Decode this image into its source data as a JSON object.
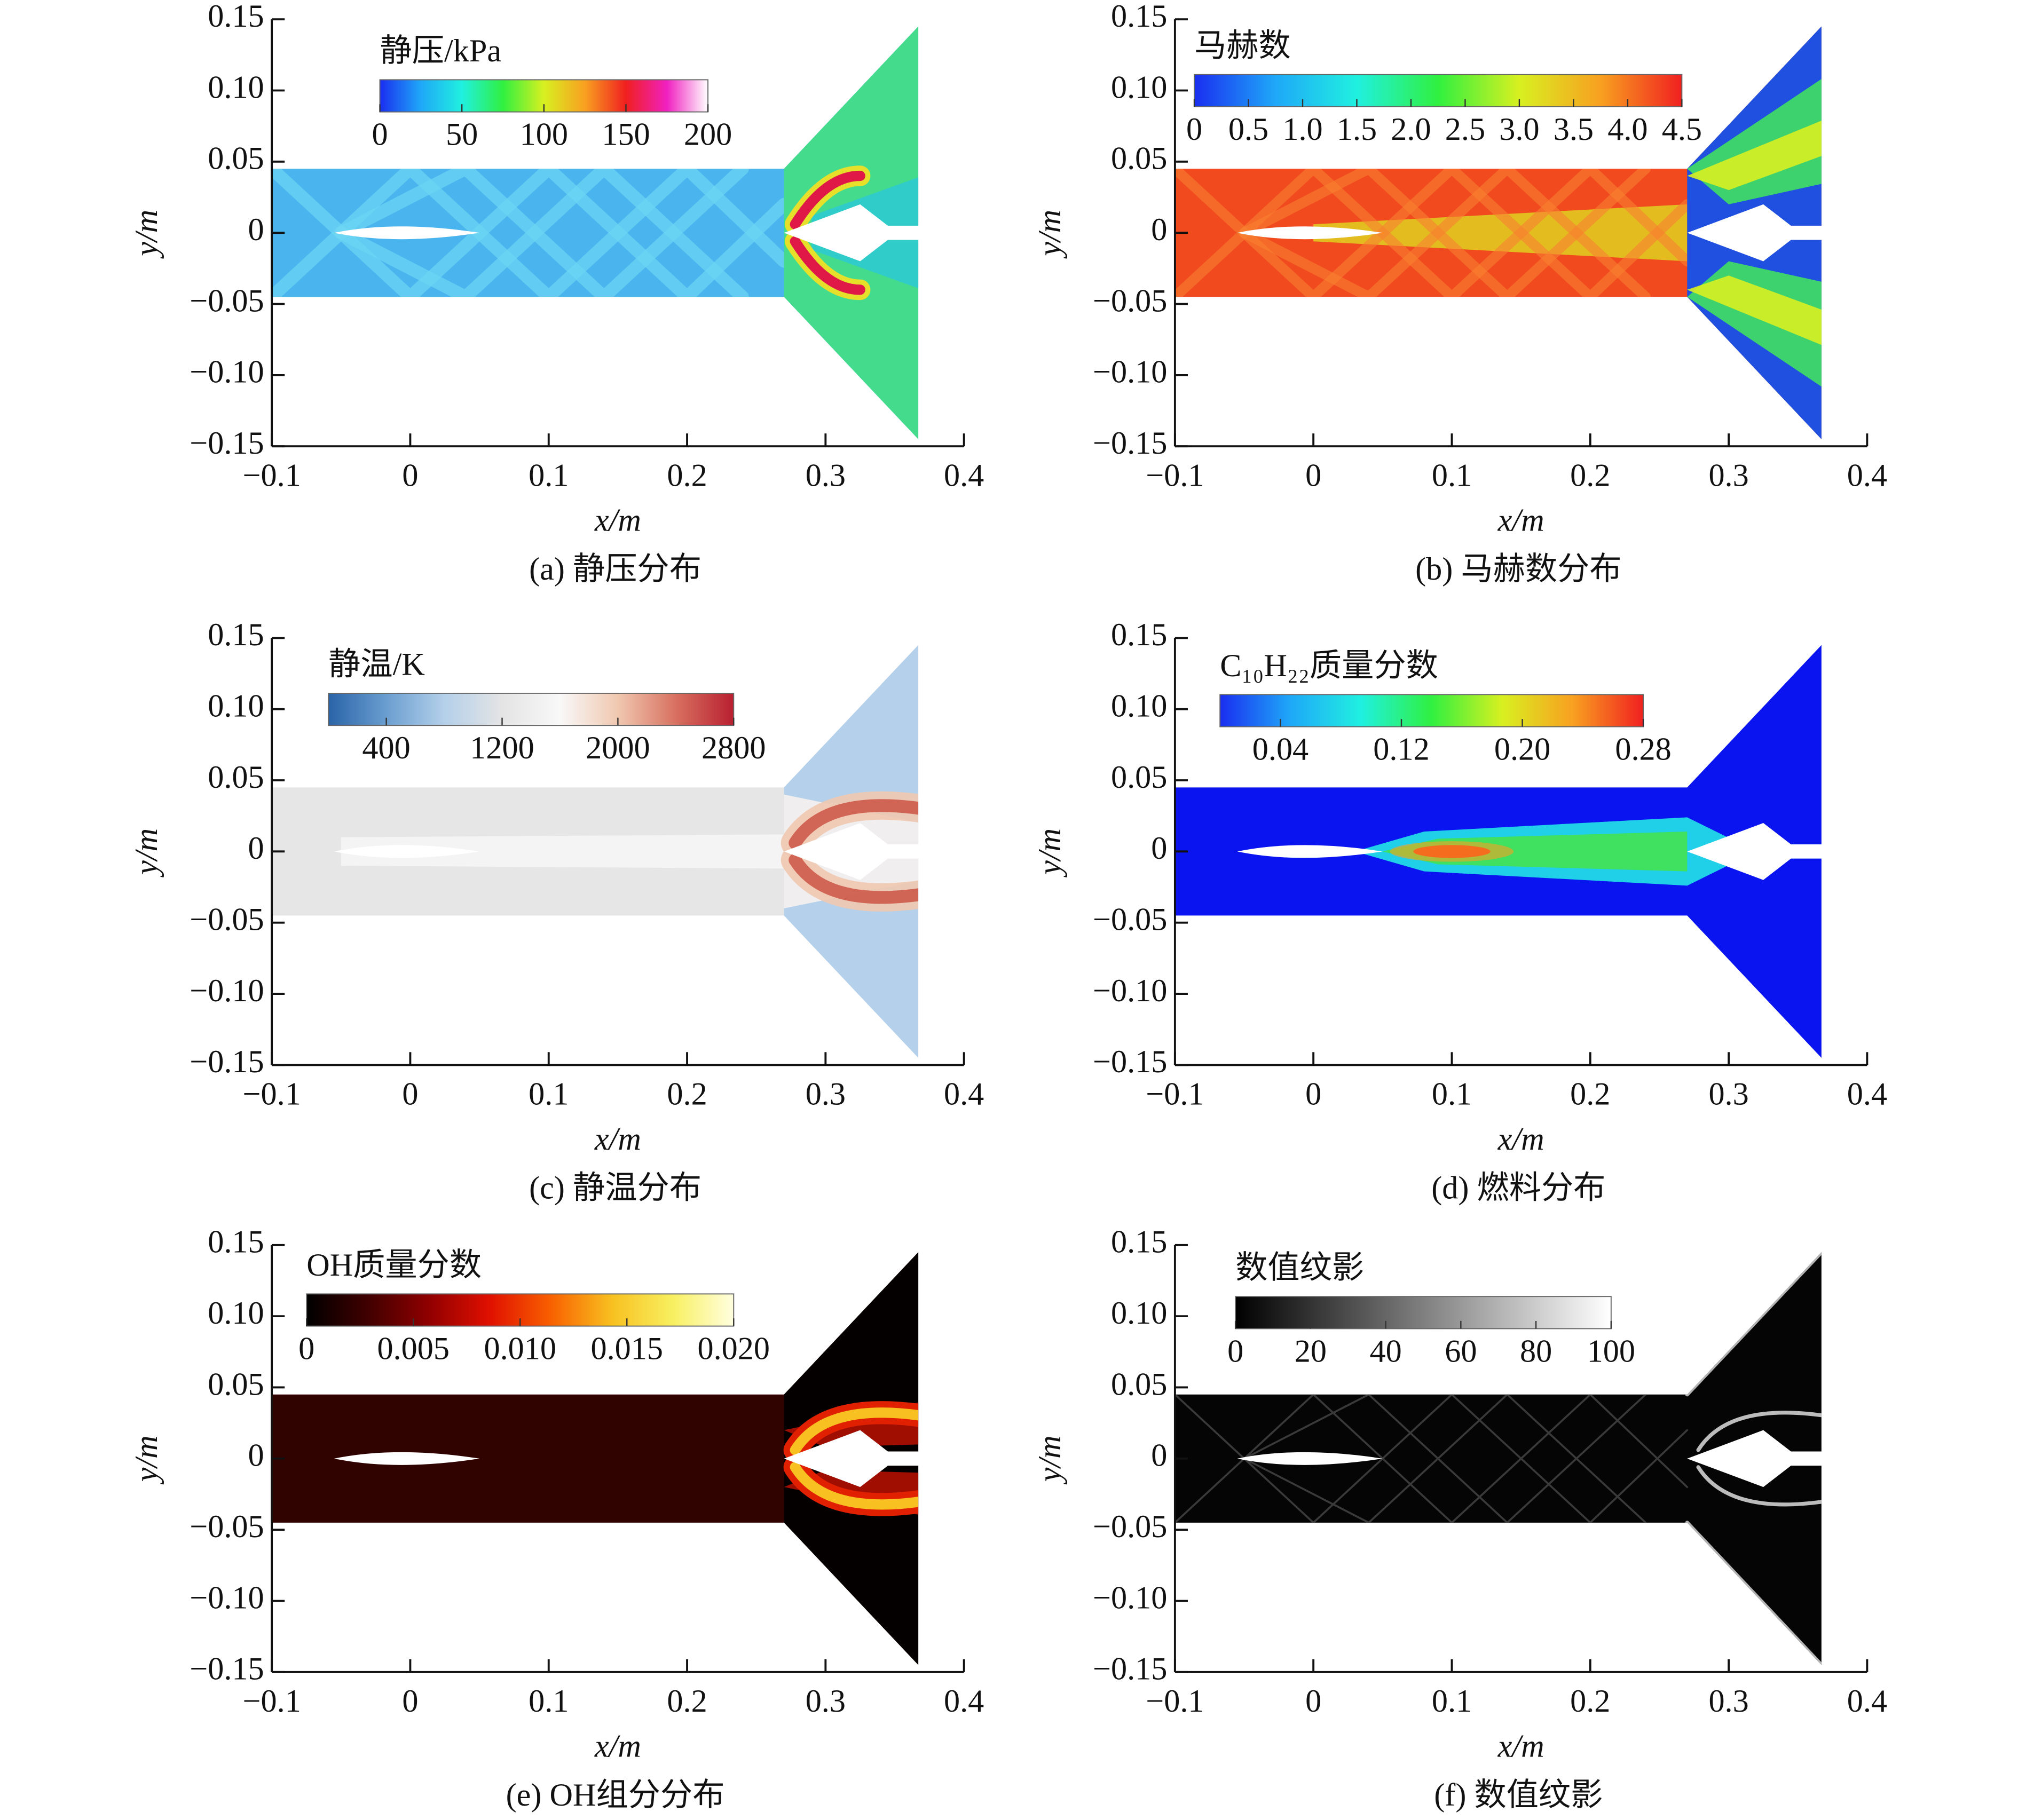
{
  "chart_data": [
    {
      "type": "contour",
      "colorbar_title": "静压/kPa",
      "caption": "(a) 静压分布",
      "x_label": "x/m",
      "y_label": "y/m",
      "xlim": [
        -0.1,
        0.4
      ],
      "ylim": [
        -0.15,
        0.15
      ],
      "xticks": [
        {
          "value": -0.1,
          "label": "−0.1"
        },
        0,
        0.1,
        0.2,
        0.3,
        0.4
      ],
      "yticks": [
        {
          "value": -0.15,
          "label": "−0.15"
        },
        {
          "value": -0.1,
          "label": "−0.10"
        },
        {
          "value": -0.05,
          "label": "−0.05"
        },
        0,
        0.05,
        {
          "value": 0.1,
          "label": "0.10"
        },
        0.15
      ],
      "clim": [
        0,
        200
      ],
      "cticks": [
        0,
        50,
        100,
        150,
        200
      ],
      "colormap": [
        "#1a2ef0",
        "#1fa8f8",
        "#20f0e0",
        "#30f040",
        "#d8f020",
        "#f8a020",
        "#f02020",
        "#f020c0",
        "#ffffff"
      ]
    },
    {
      "type": "contour",
      "colorbar_title": "马赫数",
      "caption": "(b) 马赫数分布",
      "x_label": "x/m",
      "y_label": "y/m",
      "xlim": [
        -0.1,
        0.4
      ],
      "ylim": [
        -0.15,
        0.15
      ],
      "xticks": [
        {
          "value": -0.1,
          "label": "−0.1"
        },
        0,
        0.1,
        0.2,
        0.3,
        0.4
      ],
      "yticks": [
        {
          "value": -0.15,
          "label": "−0.15"
        },
        {
          "value": -0.1,
          "label": "−0.10"
        },
        {
          "value": -0.05,
          "label": "−0.05"
        },
        0,
        0.05,
        {
          "value": 0.1,
          "label": "0.10"
        },
        0.15
      ],
      "clim": [
        0,
        4.5
      ],
      "cticks": [
        0,
        0.5,
        {
          "value": 1,
          "label": "1.0"
        },
        1.5,
        {
          "value": 2,
          "label": "2.0"
        },
        2.5,
        {
          "value": 3,
          "label": "3.0"
        },
        3.5,
        {
          "value": 4,
          "label": "4.0"
        },
        4.5
      ],
      "colormap": [
        "#1a2ef0",
        "#1fa8f8",
        "#20f0e0",
        "#30f040",
        "#d8f020",
        "#f8a020",
        "#f02020"
      ]
    },
    {
      "type": "contour",
      "colorbar_title": "静温/K",
      "caption": "(c) 静温分布",
      "x_label": "x/m",
      "y_label": "y/m",
      "xlim": [
        -0.1,
        0.4
      ],
      "ylim": [
        -0.15,
        0.15
      ],
      "xticks": [
        {
          "value": -0.1,
          "label": "−0.1"
        },
        0,
        0.1,
        0.2,
        0.3,
        0.4
      ],
      "yticks": [
        {
          "value": -0.15,
          "label": "−0.15"
        },
        {
          "value": -0.1,
          "label": "−0.10"
        },
        {
          "value": -0.05,
          "label": "−0.05"
        },
        0,
        0.05,
        {
          "value": 0.1,
          "label": "0.10"
        },
        0.15
      ],
      "clim": [
        0,
        2800
      ],
      "cticks": [
        400,
        1200,
        2000,
        2800
      ],
      "colormap": [
        "#2a64a8",
        "#6a9ed0",
        "#b4d0ea",
        "#e4e4e4",
        "#f8f8f8",
        "#f0c8b0",
        "#d87060",
        "#b82030"
      ]
    },
    {
      "type": "contour",
      "colorbar_title": "C₁₀H₂₂质量分数",
      "caption": "(d) 燃料分布",
      "x_label": "x/m",
      "y_label": "y/m",
      "xlim": [
        -0.1,
        0.4
      ],
      "ylim": [
        -0.15,
        0.15
      ],
      "xticks": [
        {
          "value": -0.1,
          "label": "−0.1"
        },
        0,
        0.1,
        0.2,
        0.3,
        0.4
      ],
      "yticks": [
        {
          "value": -0.15,
          "label": "−0.15"
        },
        {
          "value": -0.1,
          "label": "−0.10"
        },
        {
          "value": -0.05,
          "label": "−0.05"
        },
        0,
        0.05,
        {
          "value": 0.1,
          "label": "0.10"
        },
        0.15
      ],
      "clim": [
        0,
        0.28
      ],
      "cticks": [
        0.04,
        0.12,
        {
          "value": 0.2,
          "label": "0.20"
        },
        0.28
      ],
      "colormap": [
        "#1a2ef0",
        "#1fa8f8",
        "#20f0e0",
        "#30f040",
        "#d8f020",
        "#f8a020",
        "#f02020"
      ]
    },
    {
      "type": "contour",
      "colorbar_title": "OH质量分数",
      "caption": "(e) OH组分分布",
      "x_label": "x/m",
      "y_label": "y/m",
      "xlim": [
        -0.1,
        0.4
      ],
      "ylim": [
        -0.15,
        0.15
      ],
      "xticks": [
        {
          "value": -0.1,
          "label": "−0.1"
        },
        0,
        0.1,
        0.2,
        0.3,
        0.4
      ],
      "yticks": [
        {
          "value": -0.15,
          "label": "−0.15"
        },
        {
          "value": -0.1,
          "label": "−0.10"
        },
        {
          "value": -0.05,
          "label": "−0.05"
        },
        0,
        0.05,
        {
          "value": 0.1,
          "label": "0.10"
        },
        0.15
      ],
      "clim": [
        0,
        0.02
      ],
      "cticks": [
        0,
        0.005,
        {
          "value": 0.01,
          "label": "0.010"
        },
        0.015,
        {
          "value": 0.02,
          "label": "0.020"
        }
      ],
      "colormap": [
        "#000000",
        "#400000",
        "#900000",
        "#e01000",
        "#f86000",
        "#f8c020",
        "#f8f060",
        "#ffffe0"
      ]
    },
    {
      "type": "contour",
      "colorbar_title": "数值纹影",
      "caption": "(f) 数值纹影",
      "x_label": "x/m",
      "y_label": "y/m",
      "xlim": [
        -0.1,
        0.4
      ],
      "ylim": [
        -0.15,
        0.15
      ],
      "xticks": [
        {
          "value": -0.1,
          "label": "−0.1"
        },
        0,
        0.1,
        0.2,
        0.3,
        0.4
      ],
      "yticks": [
        {
          "value": -0.15,
          "label": "−0.15"
        },
        {
          "value": -0.1,
          "label": "−0.10"
        },
        {
          "value": -0.05,
          "label": "−0.05"
        },
        0,
        0.05,
        {
          "value": 0.1,
          "label": "0.10"
        },
        0.15
      ],
      "clim": [
        0,
        100
      ],
      "cticks": [
        0,
        20,
        40,
        60,
        80,
        100
      ],
      "colormap": [
        "#000000",
        "#ffffff"
      ]
    }
  ]
}
